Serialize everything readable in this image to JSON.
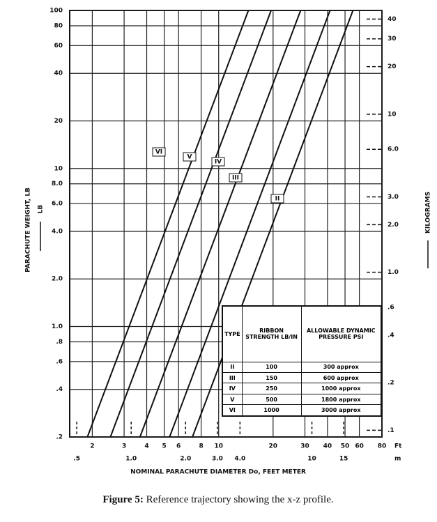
{
  "chart_data": {
    "type": "line",
    "ylabel": "PARACHUTE WEIGHT, LB",
    "ylabel_unit": "LB",
    "y2label": "KILOGRAMS",
    "xlabel": "NOMINAL PARACHUTE DIAMETER Do, FEET METER",
    "xunit": "Ft",
    "x2unit": "m",
    "log_x": true,
    "log_y": true,
    "grid": true,
    "xlim": [
      1.5,
      80
    ],
    "xticks": [
      2,
      3,
      4,
      5,
      6,
      8,
      10,
      20,
      30,
      40,
      50,
      60,
      80
    ],
    "x2lim": [
      0.457,
      24.4
    ],
    "x2ticks": [
      {
        "value": 0.5,
        "label": ".5"
      },
      {
        "value": 1,
        "label": "1.0"
      },
      {
        "value": 2,
        "label": "2.0"
      },
      {
        "value": 3,
        "label": "3.0"
      },
      {
        "value": 4,
        "label": "4.0"
      },
      10,
      15
    ],
    "ylim": [
      0.2,
      100
    ],
    "yticks": [
      100,
      80,
      60,
      40,
      20,
      10,
      {
        "value": 8,
        "label": "8.0"
      },
      {
        "value": 6,
        "label": "6.0"
      },
      {
        "value": 4,
        "label": "4.0"
      },
      {
        "value": 2,
        "label": "2.0"
      },
      {
        "value": 1,
        "label": "1.0"
      },
      {
        "value": 0.8,
        "label": ".8"
      },
      {
        "value": 0.6,
        "label": ".6"
      },
      {
        "value": 0.4,
        "label": ".4"
      },
      {
        "value": 0.2,
        "label": ".2"
      }
    ],
    "y2lim": [
      0.0907,
      45.36
    ],
    "y2ticks": [
      40,
      30,
      20,
      10,
      {
        "value": 6,
        "label": "6.0"
      },
      {
        "value": 3,
        "label": "3.0"
      },
      {
        "value": 2,
        "label": "2.0"
      },
      {
        "value": 1,
        "label": "1.0"
      },
      {
        "value": 0.6,
        "label": ".6"
      },
      {
        "value": 0.4,
        "label": ".4"
      },
      {
        "value": 0.2,
        "label": ".2"
      },
      {
        "value": 0.1,
        "label": ".1"
      }
    ],
    "series": [
      {
        "name": "VI",
        "color": "#111111",
        "x": [
          1.88,
          14.6
        ],
        "values": [
          0.2,
          100
        ]
      },
      {
        "name": "V",
        "color": "#111111",
        "x": [
          2.52,
          19.5
        ],
        "values": [
          0.2,
          100
        ]
      },
      {
        "name": "IV",
        "color": "#111111",
        "x": [
          3.67,
          28.4
        ],
        "values": [
          0.2,
          100
        ]
      },
      {
        "name": "III",
        "color": "#111111",
        "x": [
          5.35,
          41.3
        ],
        "values": [
          0.2,
          100
        ]
      },
      {
        "name": "II",
        "color": "#111111",
        "x": [
          7.16,
          55.3
        ],
        "values": [
          0.2,
          100
        ]
      }
    ]
  },
  "table": {
    "header": [
      "TYPE",
      "RIBBON STRENGTH LB/IN",
      "ALLOWABLE DYNAMIC PRESSURE PSI"
    ],
    "rows": [
      [
        "II",
        "100",
        "300 approx"
      ],
      [
        "III",
        "150",
        "600 approx"
      ],
      [
        "IV",
        "250",
        "1000 approx"
      ],
      [
        "V",
        "500",
        "1800 approx"
      ],
      [
        "VI",
        "1000",
        "3000 approx"
      ]
    ]
  },
  "caption": {
    "label": "Figure 5:",
    "text": "Reference trajectory showing the x-z profile."
  }
}
